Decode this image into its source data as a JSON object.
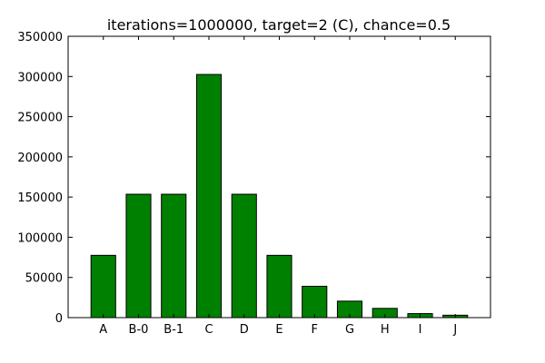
{
  "chart_data": {
    "type": "bar",
    "title": "iterations=1000000, target=2 (C), chance=0.5",
    "xlabel": "",
    "ylabel": "",
    "categories": [
      "A",
      "B-0",
      "B-1",
      "C",
      "D",
      "E",
      "F",
      "G",
      "H",
      "I",
      "J"
    ],
    "values": [
      77500,
      153500,
      153500,
      302500,
      153500,
      77500,
      39000,
      20500,
      11500,
      5000,
      3000
    ],
    "ylim": [
      0,
      350000
    ],
    "yticks": [
      "0",
      "50000",
      "100000",
      "150000",
      "200000",
      "250000",
      "300000",
      "350000"
    ],
    "yticks_values": [
      0,
      50000,
      100000,
      150000,
      200000,
      250000,
      300000,
      350000
    ],
    "grid": false,
    "colors": {
      "bar": "#008000",
      "edge": "#000000"
    }
  }
}
